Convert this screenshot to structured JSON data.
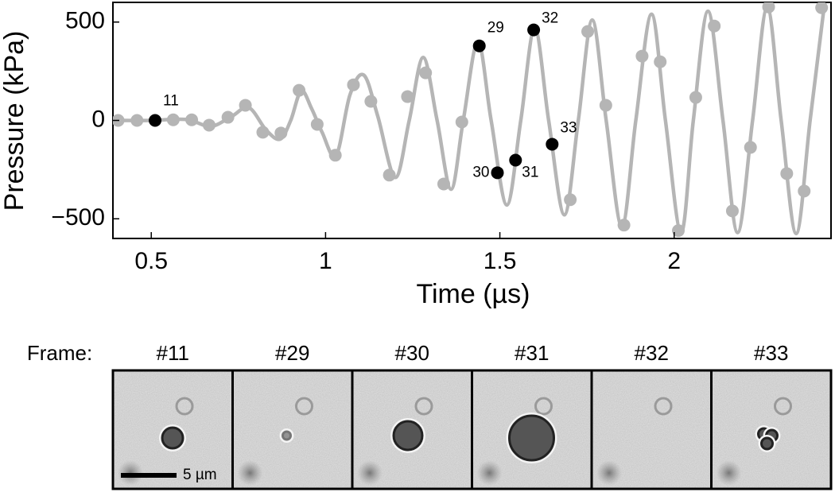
{
  "chart_data": {
    "type": "line",
    "xlabel": "Time (µs)",
    "ylabel": "Pressure (kPa)",
    "xlim": [
      0.39,
      2.45
    ],
    "ylim": [
      -600,
      600
    ],
    "xticks": [
      0.5,
      1,
      1.5,
      2
    ],
    "yticks": [
      {
        "value": -500,
        "label": "−500"
      },
      0,
      500
    ],
    "series": [
      {
        "color": "#b5b5b5",
        "style": "curve",
        "x": [
          0.39,
          0.5,
          0.6,
          0.67,
          0.73,
          0.78,
          0.83,
          0.87,
          0.9,
          0.93,
          0.96,
          0.99,
          1.03,
          1.07,
          1.11,
          1.15,
          1.2,
          1.24,
          1.28,
          1.32,
          1.36,
          1.395,
          1.437,
          1.475,
          1.52,
          1.56,
          1.6,
          1.64,
          1.685,
          1.725,
          1.765,
          1.805,
          1.85,
          1.89,
          1.935,
          1.975,
          2.02,
          2.055,
          2.097,
          2.14,
          2.182,
          2.225,
          2.267,
          2.307,
          2.35,
          2.39,
          2.43
        ],
        "values": [
          0,
          0,
          5,
          -30,
          20,
          65,
          -50,
          -95,
          0,
          150,
          60,
          -60,
          -180,
          130,
          230,
          20,
          -290,
          0,
          320,
          0,
          -350,
          0,
          400,
          0,
          -430,
          0,
          470,
          0,
          -480,
          0,
          510,
          0,
          -540,
          0,
          540,
          0,
          -570,
          0,
          555,
          0,
          -570,
          0,
          575,
          0,
          -575,
          0,
          575
        ]
      },
      {
        "color": "#b5b5b5",
        "style": "dots",
        "x": [
          0.405,
          0.459,
          0.563,
          0.616,
          0.666,
          0.72,
          0.77,
          0.82,
          0.872,
          0.924,
          0.976,
          1.028,
          1.08,
          1.13,
          1.183,
          1.235,
          1.287,
          1.339,
          1.391,
          1.702,
          1.752,
          1.804,
          1.856,
          1.908,
          1.96,
          2.012,
          2.062,
          2.115,
          2.167,
          2.219,
          2.271,
          2.323,
          2.373,
          2.423
        ],
        "values": [
          0,
          0,
          3,
          3,
          -24,
          16,
          77,
          -60,
          -64,
          153,
          -20,
          -177,
          181,
          97,
          -278,
          121,
          242,
          -323,
          -8,
          -403,
          452,
          77,
          -532,
          327,
          298,
          -560,
          117,
          480,
          -460,
          -137,
          577,
          -270,
          -359,
          573
        ]
      },
      {
        "color": "#000000",
        "style": "dots",
        "x": [
          0.511,
          1.441,
          1.493,
          1.545,
          1.597,
          1.65
        ],
        "values": [
          0,
          379,
          -266,
          -202,
          460,
          -121
        ],
        "labels": [
          "11",
          "29",
          "30",
          "31",
          "32",
          "33"
        ]
      }
    ]
  },
  "panels": {
    "row_label": "Frame:",
    "frames": [
      "#11",
      "#29",
      "#30",
      "#31",
      "#32",
      "#33"
    ],
    "scale_bar": "5 µm"
  }
}
